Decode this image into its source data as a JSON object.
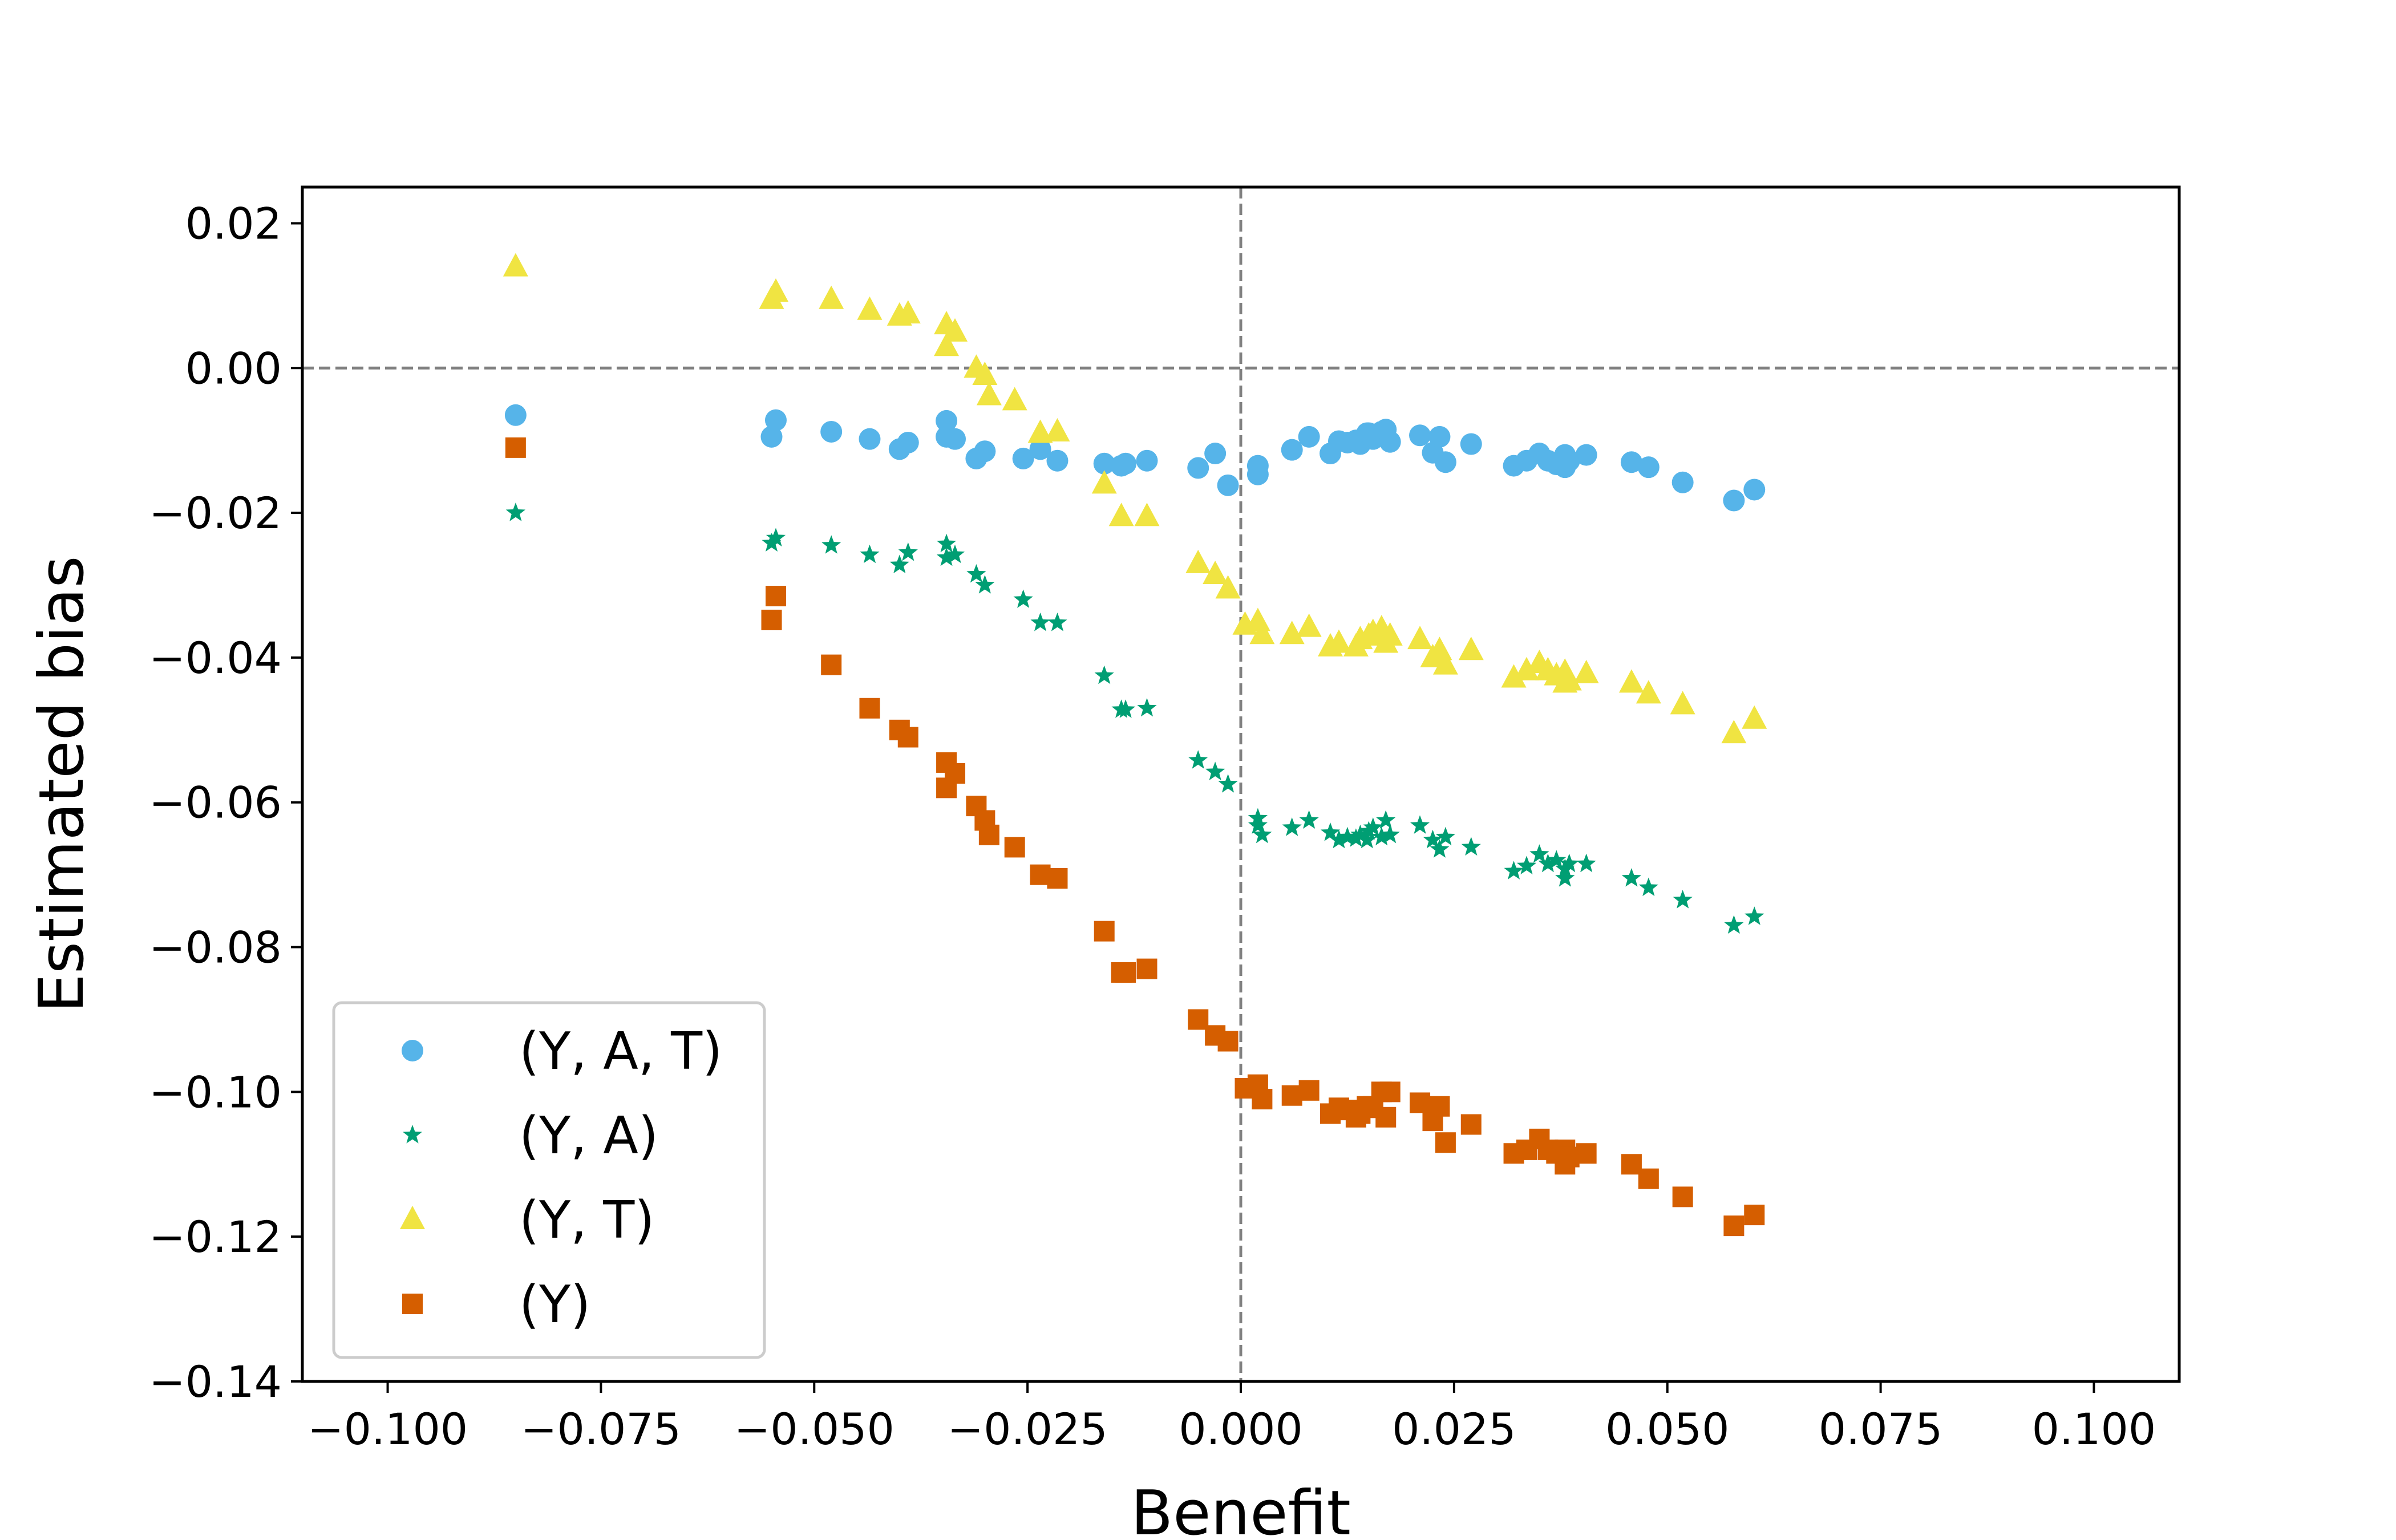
{
  "chart_data": {
    "type": "scatter",
    "xlabel": "Benefit",
    "ylabel": "Estimated bias",
    "xlim": [
      -0.11,
      0.11
    ],
    "ylim": [
      -0.14,
      0.025
    ],
    "xticks": [
      -0.1,
      -0.075,
      -0.05,
      -0.025,
      0.0,
      0.025,
      0.05,
      0.075,
      0.1
    ],
    "xtick_labels": [
      "−0.100",
      "−0.075",
      "−0.050",
      "−0.025",
      "0.000",
      "0.025",
      "0.050",
      "0.075",
      "0.100"
    ],
    "yticks": [
      0.02,
      0.0,
      -0.02,
      -0.04,
      -0.06,
      -0.08,
      -0.1,
      -0.12,
      -0.14
    ],
    "ytick_labels": [
      "0.02",
      "0.00",
      "−0.02",
      "−0.04",
      "−0.06",
      "−0.08",
      "−0.10",
      "−0.12",
      "−0.14"
    ],
    "grid": false,
    "reference_lines": {
      "x": 0.0,
      "y": 0.0,
      "style": "dashed",
      "color": "#808080"
    },
    "legend_position": "lower-left",
    "series": [
      {
        "name": "(Y, A, T)",
        "marker": "circle",
        "color": "#56B4E9",
        "x": [
          -0.085,
          -0.055,
          -0.0545,
          -0.048,
          -0.0435,
          -0.04,
          -0.039,
          -0.0345,
          -0.0345,
          -0.0335,
          -0.031,
          -0.03,
          -0.0255,
          -0.0235,
          -0.0215,
          -0.016,
          -0.014,
          -0.0135,
          -0.011,
          -0.005,
          -0.003,
          -0.0015,
          0.002,
          0.002,
          0.006,
          0.008,
          0.0105,
          0.0115,
          0.0125,
          0.0135,
          0.014,
          0.0148,
          0.015,
          0.0155,
          0.0165,
          0.017,
          0.0175,
          0.021,
          0.0225,
          0.0233,
          0.024,
          0.027,
          0.032,
          0.0335,
          0.035,
          0.036,
          0.037,
          0.038,
          0.038,
          0.0385,
          0.0405,
          0.0458,
          0.0478,
          0.0518,
          0.0578,
          0.0602
        ],
        "y": [
          -0.0065,
          -0.0095,
          -0.0072,
          -0.0088,
          -0.0098,
          -0.0112,
          -0.0103,
          -0.0073,
          -0.0095,
          -0.0098,
          -0.0125,
          -0.0115,
          -0.0125,
          -0.0112,
          -0.0128,
          -0.0132,
          -0.0135,
          -0.0132,
          -0.0128,
          -0.0138,
          -0.0118,
          -0.0162,
          -0.0135,
          -0.0147,
          -0.0113,
          -0.0095,
          -0.0118,
          -0.0101,
          -0.0103,
          -0.01,
          -0.0105,
          -0.009,
          -0.009,
          -0.0098,
          -0.0088,
          -0.0085,
          -0.0102,
          -0.0093,
          -0.0117,
          -0.0095,
          -0.013,
          -0.0105,
          -0.0135,
          -0.0128,
          -0.0118,
          -0.0128,
          -0.0133,
          -0.012,
          -0.0137,
          -0.0128,
          -0.012,
          -0.013,
          -0.0137,
          -0.0158,
          -0.0183,
          -0.0168
        ]
      },
      {
        "name": "(Y, A)",
        "marker": "star",
        "color": "#009E73",
        "x": [
          -0.085,
          -0.055,
          -0.0545,
          -0.048,
          -0.0435,
          -0.04,
          -0.039,
          -0.0345,
          -0.0345,
          -0.0335,
          -0.031,
          -0.03,
          -0.0255,
          -0.0235,
          -0.0215,
          -0.016,
          -0.014,
          -0.0135,
          -0.011,
          -0.005,
          -0.003,
          -0.0015,
          0.002,
          0.002,
          0.0025,
          0.006,
          0.008,
          0.0105,
          0.0115,
          0.0125,
          0.0135,
          0.014,
          0.0148,
          0.015,
          0.0155,
          0.0165,
          0.017,
          0.0175,
          0.021,
          0.0225,
          0.0233,
          0.024,
          0.027,
          0.032,
          0.0335,
          0.035,
          0.036,
          0.037,
          0.038,
          0.038,
          0.0385,
          0.0405,
          0.0458,
          0.0478,
          0.0518,
          0.0578,
          0.0602
        ],
        "y": [
          -0.02,
          -0.0242,
          -0.0235,
          -0.0245,
          -0.0258,
          -0.0272,
          -0.0255,
          -0.0243,
          -0.0262,
          -0.0258,
          -0.0285,
          -0.03,
          -0.032,
          -0.0352,
          -0.0352,
          -0.0425,
          -0.0472,
          -0.0472,
          -0.047,
          -0.0542,
          -0.0558,
          -0.0575,
          -0.0632,
          -0.0622,
          -0.0645,
          -0.0635,
          -0.0625,
          -0.0642,
          -0.0652,
          -0.0648,
          -0.065,
          -0.0645,
          -0.0652,
          -0.064,
          -0.0635,
          -0.0648,
          -0.0625,
          -0.0645,
          -0.0632,
          -0.0652,
          -0.0665,
          -0.0648,
          -0.0662,
          -0.0695,
          -0.0688,
          -0.0672,
          -0.0685,
          -0.068,
          -0.0692,
          -0.0705,
          -0.0685,
          -0.0685,
          -0.0705,
          -0.0718,
          -0.0735,
          -0.077,
          -0.0758
        ]
      },
      {
        "name": "(Y, T)",
        "marker": "triangle",
        "color": "#F0E442",
        "x": [
          -0.085,
          -0.055,
          -0.0545,
          -0.048,
          -0.0435,
          -0.04,
          -0.039,
          -0.0345,
          -0.0345,
          -0.0335,
          -0.031,
          -0.03,
          -0.0295,
          -0.0265,
          -0.0235,
          -0.0215,
          -0.016,
          -0.014,
          -0.011,
          -0.005,
          -0.003,
          -0.0015,
          0.0005,
          0.002,
          0.0025,
          0.006,
          0.008,
          0.0105,
          0.0115,
          0.0135,
          0.014,
          0.015,
          0.0155,
          0.0165,
          0.017,
          0.0175,
          0.021,
          0.0225,
          0.0233,
          0.024,
          0.027,
          0.032,
          0.0335,
          0.035,
          0.036,
          0.037,
          0.038,
          0.038,
          0.0385,
          0.0405,
          0.0458,
          0.0478,
          0.0518,
          0.0578,
          0.0602
        ],
        "y": [
          0.014,
          0.0095,
          0.0105,
          0.0095,
          0.008,
          0.0072,
          0.0075,
          0.006,
          0.003,
          0.005,
          0.0,
          -0.001,
          -0.0038,
          -0.0045,
          -0.009,
          -0.0088,
          -0.016,
          -0.0205,
          -0.0205,
          -0.027,
          -0.0285,
          -0.0305,
          -0.0355,
          -0.035,
          -0.0368,
          -0.0368,
          -0.0358,
          -0.0385,
          -0.038,
          -0.0385,
          -0.0375,
          -0.037,
          -0.0365,
          -0.036,
          -0.038,
          -0.037,
          -0.0375,
          -0.04,
          -0.039,
          -0.041,
          -0.039,
          -0.0428,
          -0.0418,
          -0.0408,
          -0.0418,
          -0.0425,
          -0.0435,
          -0.042,
          -0.0432,
          -0.0422,
          -0.0435,
          -0.045,
          -0.0465,
          -0.0505,
          -0.0485
        ]
      },
      {
        "name": "(Y)",
        "marker": "square",
        "color": "#D55E00",
        "x": [
          -0.085,
          -0.055,
          -0.0545,
          -0.048,
          -0.0435,
          -0.04,
          -0.039,
          -0.0345,
          -0.0345,
          -0.0335,
          -0.031,
          -0.03,
          -0.0295,
          -0.0265,
          -0.0235,
          -0.0215,
          -0.016,
          -0.014,
          -0.0135,
          -0.011,
          -0.005,
          -0.003,
          -0.0015,
          0.0005,
          0.002,
          0.0025,
          0.006,
          0.008,
          0.0105,
          0.0115,
          0.0125,
          0.0135,
          0.014,
          0.0148,
          0.015,
          0.0155,
          0.0165,
          0.017,
          0.0175,
          0.021,
          0.0225,
          0.0233,
          0.024,
          0.027,
          0.032,
          0.0335,
          0.035,
          0.036,
          0.037,
          0.038,
          0.038,
          0.0385,
          0.0405,
          0.0458,
          0.0478,
          0.0518,
          0.0578,
          0.0602
        ],
        "y": [
          -0.011,
          -0.0348,
          -0.0315,
          -0.041,
          -0.047,
          -0.05,
          -0.051,
          -0.0545,
          -0.058,
          -0.056,
          -0.0605,
          -0.0625,
          -0.0645,
          -0.0662,
          -0.07,
          -0.0705,
          -0.0778,
          -0.0835,
          -0.0835,
          -0.083,
          -0.09,
          -0.0922,
          -0.093,
          -0.0995,
          -0.099,
          -0.101,
          -0.1005,
          -0.0998,
          -0.103,
          -0.1022,
          -0.1025,
          -0.1035,
          -0.103,
          -0.102,
          -0.1022,
          -0.102,
          -0.1,
          -0.1035,
          -0.1,
          -0.1015,
          -0.104,
          -0.102,
          -0.107,
          -0.1045,
          -0.1085,
          -0.108,
          -0.1065,
          -0.108,
          -0.1085,
          -0.11,
          -0.108,
          -0.109,
          -0.1085,
          -0.11,
          -0.112,
          -0.1145,
          -0.1185,
          -0.117
        ]
      }
    ]
  }
}
